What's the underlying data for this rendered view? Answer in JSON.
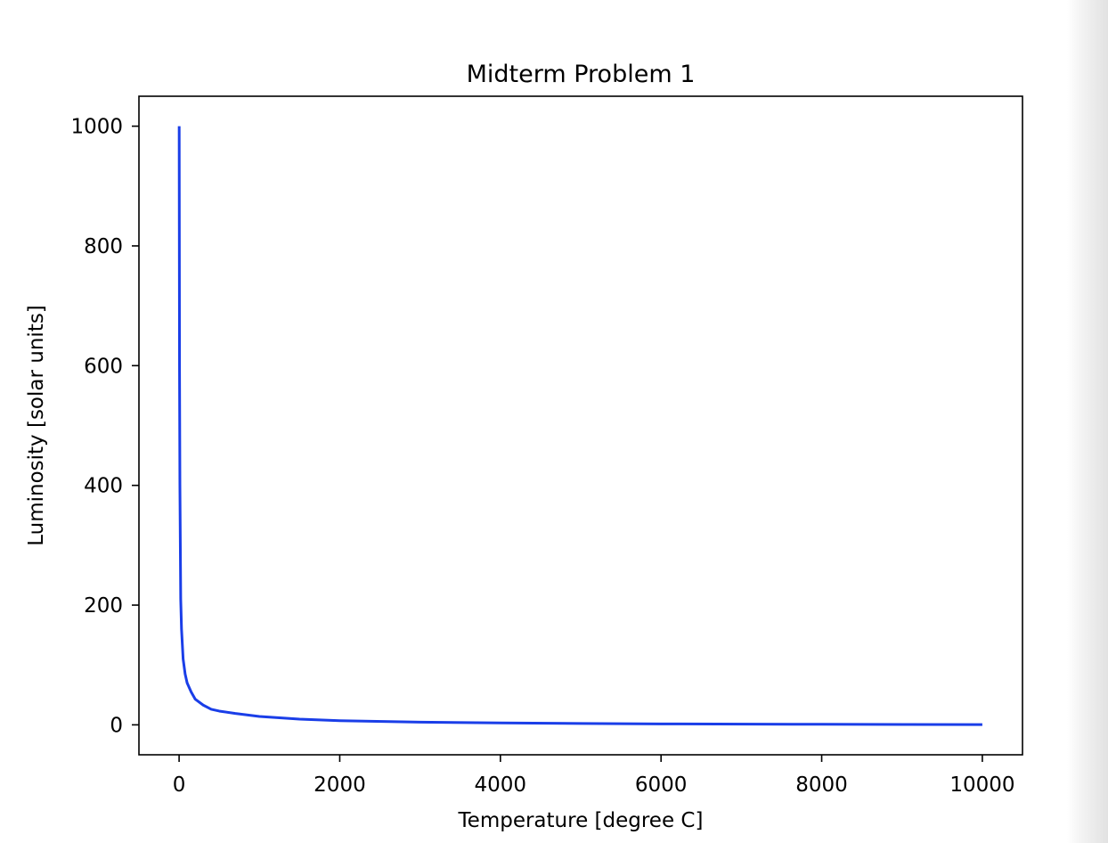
{
  "chart_data": {
    "type": "line",
    "title": "Midterm Problem 1",
    "xlabel": "Temperature [degree C]",
    "ylabel": "Luminosity [solar units]",
    "xlim": [
      -500,
      10500
    ],
    "ylim": [
      -50,
      1050
    ],
    "x_ticks": [
      0,
      2000,
      4000,
      6000,
      8000,
      10000
    ],
    "y_ticks": [
      0,
      200,
      400,
      600,
      800,
      1000
    ],
    "grid": false,
    "legend": "none",
    "series": [
      {
        "color": "#1a3ee8",
        "x": [
          1,
          5,
          10,
          20,
          30,
          50,
          75,
          100,
          150,
          200,
          300,
          400,
          500,
          700,
          1000,
          1500,
          2000,
          3000,
          4000,
          5000,
          6000,
          8000,
          10000
        ],
        "y": [
          1000,
          600,
          400,
          210,
          160,
          110,
          85,
          70,
          55,
          43,
          33,
          26,
          23,
          19,
          14,
          9.5,
          7,
          4.5,
          3.2,
          2.3,
          1.6,
          0.9,
          0.5
        ]
      }
    ]
  }
}
